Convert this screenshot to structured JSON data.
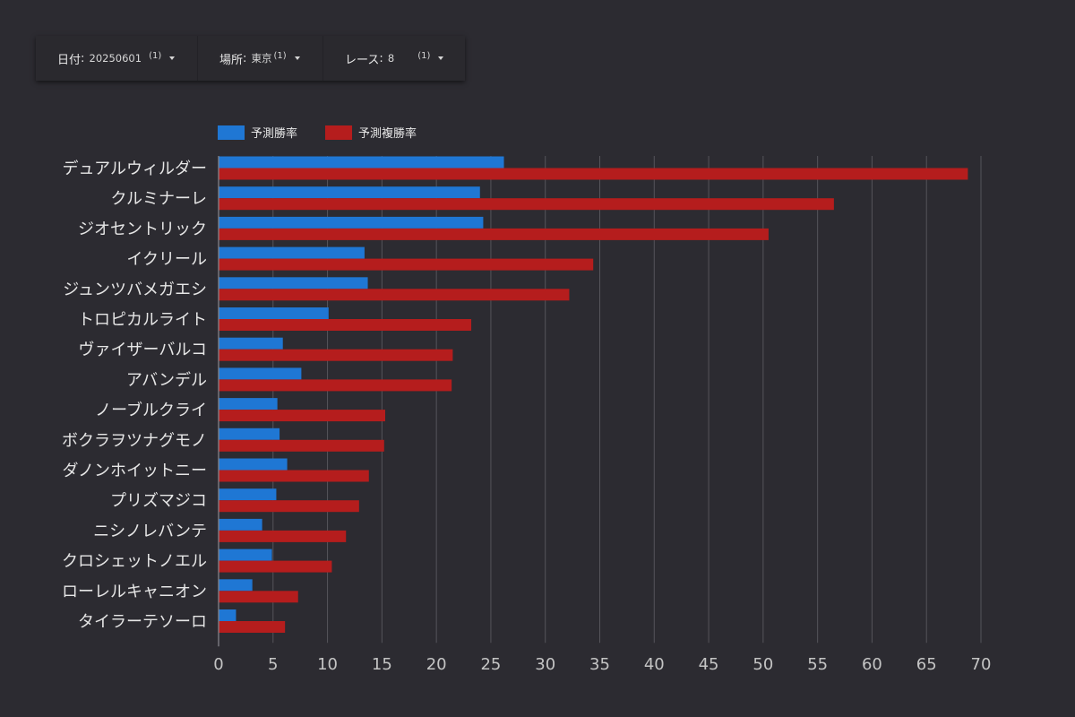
{
  "filters": [
    {
      "label": "日付",
      "value": "20250601",
      "count": "(1)"
    },
    {
      "label": "場所",
      "value": "東京",
      "count": "(1)"
    },
    {
      "label": "レース",
      "value": "8",
      "count": "(1)"
    }
  ],
  "colors": {
    "win": "#1f77d4",
    "place": "#b51d1d",
    "grid": "#55545a",
    "axis": "#8a898f",
    "text": "#e6e6e6",
    "tick": "#c4c4c4"
  },
  "chart_data": {
    "type": "bar",
    "orientation": "horizontal",
    "categories": [
      "デュアルウィルダー",
      "クルミナーレ",
      "ジオセントリック",
      "イクリール",
      "ジュンツバメガエシ",
      "トロピカルライト",
      "ヴァイザーバルコ",
      "アバンデル",
      "ノーブルクライ",
      "ボクラヲツナグモノ",
      "ダノンホイットニー",
      "プリズマジコ",
      "ニシノレバンテ",
      "クロシェットノエル",
      "ローレルキャニオン",
      "タイラーテソーロ"
    ],
    "series": [
      {
        "name": "予測勝率",
        "values": [
          26.2,
          24.0,
          24.3,
          13.4,
          13.7,
          10.1,
          5.9,
          7.6,
          5.4,
          5.6,
          6.3,
          5.3,
          4.0,
          4.9,
          3.1,
          1.6
        ]
      },
      {
        "name": "予測複勝率",
        "values": [
          68.8,
          56.5,
          50.5,
          34.4,
          32.2,
          23.2,
          21.5,
          21.4,
          15.3,
          15.2,
          13.8,
          12.9,
          11.7,
          10.4,
          7.3,
          6.1
        ]
      }
    ],
    "xlim": [
      0,
      70
    ],
    "xticks": [
      0,
      5,
      10,
      15,
      20,
      25,
      30,
      35,
      40,
      45,
      50,
      55,
      60,
      65,
      70
    ],
    "grid": true,
    "legend": "top-left"
  }
}
